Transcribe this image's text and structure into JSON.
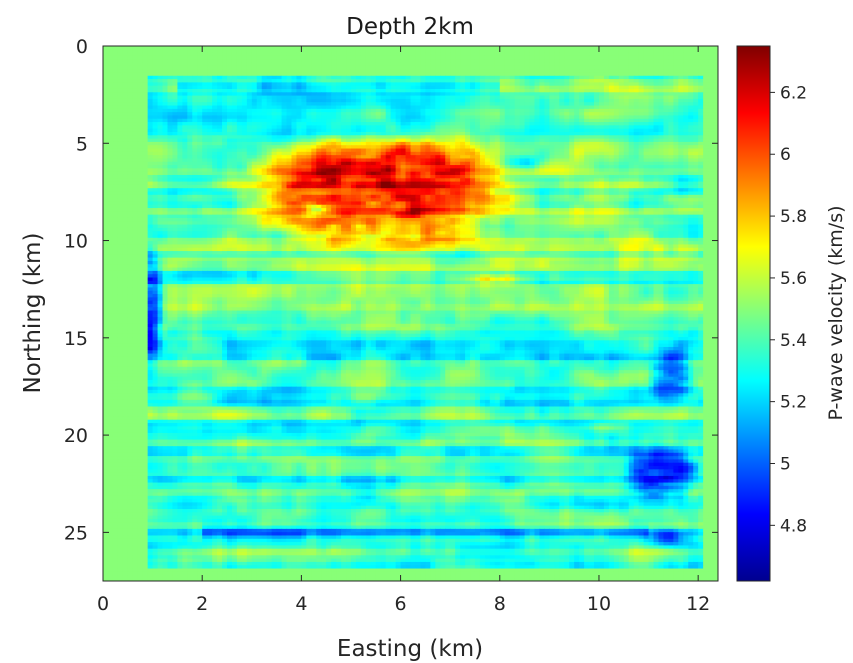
{
  "chart_data": {
    "type": "heatmap",
    "title": "Depth 2km",
    "xlabel": "Easting (km)",
    "ylabel": "Northing (km)",
    "colorbar_label": "P-wave velocity (km/s)",
    "colormap": "jet",
    "xlim": [
      0,
      12.4
    ],
    "ylim": [
      0,
      27.5
    ],
    "y_reversed": true,
    "x_ticks": [
      "0",
      "2",
      "4",
      "6",
      "8",
      "10",
      "12"
    ],
    "x_tick_values": [
      0,
      2,
      4,
      6,
      8,
      10,
      12
    ],
    "y_ticks": [
      "0",
      "5",
      "10",
      "15",
      "20",
      "25"
    ],
    "y_tick_values": [
      0,
      5,
      10,
      15,
      20,
      25
    ],
    "clim": [
      4.62,
      6.35
    ],
    "colorbar_ticks": [
      "4.8",
      "5",
      "5.2",
      "5.4",
      "5.6",
      "5.8",
      "6",
      "6.2"
    ],
    "colorbar_tick_values": [
      4.8,
      5.0,
      5.2,
      5.4,
      5.6,
      5.8,
      6.0,
      6.2
    ],
    "background_value": 5.5,
    "survey_extent": {
      "easting": [
        0.9,
        12.1
      ],
      "northing": [
        1.5,
        26.8
      ]
    },
    "features": [
      {
        "label": "high-velocity anomaly",
        "easting": [
          3.0,
          8.2
        ],
        "northing": [
          4.5,
          10.5
        ],
        "value": 6.15
      },
      {
        "label": "low-velocity band west",
        "easting": [
          0.7,
          1.2
        ],
        "northing": [
          10.5,
          16.5
        ],
        "value": 4.9
      },
      {
        "label": "low-velocity cluster east",
        "easting": [
          10.5,
          12.0
        ],
        "northing": [
          20.5,
          23.5
        ],
        "value": 4.95
      },
      {
        "label": "low-velocity cluster east",
        "easting": [
          11.0,
          11.9
        ],
        "northing": [
          15.5,
          18.5
        ],
        "value": 5.0
      }
    ]
  }
}
